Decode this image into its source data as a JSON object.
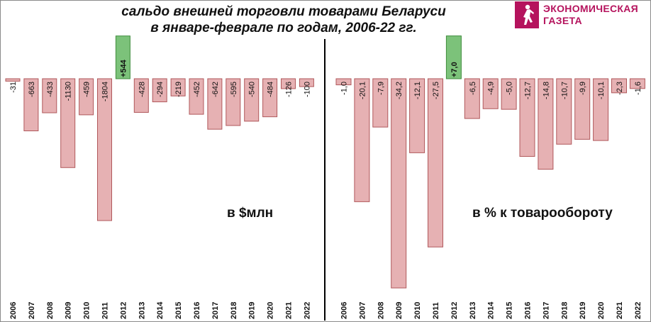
{
  "title": {
    "line1": "сальдо внешней торговли товарами Беларуси",
    "line2": "в январе-феврале по годам, 2006-22 гг."
  },
  "logo": {
    "line1": "ЭКОНОМИЧЕСКАЯ",
    "line2": "ГАЗЕТА",
    "icon": "running-figure-icon",
    "color": "#b5135d"
  },
  "colors": {
    "negative_fill": "#e6b1b3",
    "negative_stroke": "#b0585b",
    "positive_fill": "#7cc27a",
    "positive_stroke": "#3f8c3d"
  },
  "chart_data": [
    {
      "type": "bar",
      "unit_label": "в $млн",
      "categories": [
        "2006",
        "2007",
        "2008",
        "2009",
        "2010",
        "2011",
        "2012",
        "2013",
        "2014",
        "2015",
        "2016",
        "2017",
        "2018",
        "2019",
        "2020",
        "2021",
        "2022"
      ],
      "values": [
        -31,
        -663,
        -433,
        -1130,
        -459,
        -1804,
        544,
        -428,
        -294,
        -219,
        -452,
        -642,
        -595,
        -540,
        -484,
        -126,
        -100
      ],
      "labels": [
        "-31",
        "-663",
        "-433",
        "-1130",
        "-459",
        "-1804",
        "+544",
        "-428",
        "-294",
        "-219",
        "-452",
        "-642",
        "-595",
        "-540",
        "-484",
        "-126",
        "-100"
      ]
    },
    {
      "type": "bar",
      "unit_label": "в % к товарообороту",
      "categories": [
        "2006",
        "2007",
        "2008",
        "2009",
        "2010",
        "2011",
        "2012",
        "2013",
        "2014",
        "2015",
        "2016",
        "2017",
        "2018",
        "2019",
        "2020",
        "2021",
        "2022"
      ],
      "values": [
        -1.0,
        -20.1,
        -7.9,
        -34.2,
        -12.1,
        -27.5,
        7.0,
        -6.5,
        -4.9,
        -5.0,
        -12.7,
        -14.8,
        -10.7,
        -9.9,
        -10.1,
        -2.3,
        -1.6
      ],
      "labels": [
        "-1,0",
        "-20,1",
        "-7,9",
        "-34,2",
        "-12,1",
        "-27,5",
        "+7,0",
        "-6,5",
        "-4,9",
        "-5,0",
        "-12,7",
        "-14,8",
        "-10,7",
        "-9,9",
        "-10,1",
        "-2,3",
        "-1,6"
      ]
    }
  ]
}
